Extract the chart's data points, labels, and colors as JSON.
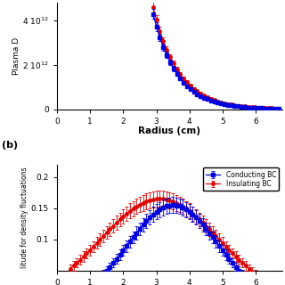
{
  "top_panel": {
    "xlabel": "Radius (cm)",
    "ylabel": "Plasma D",
    "xlim": [
      0,
      6.8
    ],
    "ylim": [
      0,
      4800000000000.0
    ],
    "xticks": [
      0,
      1,
      2,
      3,
      4,
      5,
      6
    ],
    "yticks": [
      0,
      2000000000000.0,
      4000000000000.0
    ],
    "blue_color": "#0000dd",
    "red_color": "#dd0000",
    "r_start": 2.9,
    "r_end": 6.7,
    "n_points": 38
  },
  "bottom_panel": {
    "ylabel": "litude for density fluctuations",
    "ylim": [
      0.05,
      0.22
    ],
    "xlim": [
      0,
      6.8
    ],
    "yticks": [
      0.1,
      0.15,
      0.2
    ],
    "xticks": [
      0,
      1,
      2,
      3,
      4,
      5,
      6
    ],
    "legend_labels": [
      "Conducting BC",
      "Insulating BC"
    ],
    "blue_color": "#0000dd",
    "red_color": "#dd0000",
    "r_start": 0.4,
    "r_end": 6.6,
    "n_points": 63
  }
}
